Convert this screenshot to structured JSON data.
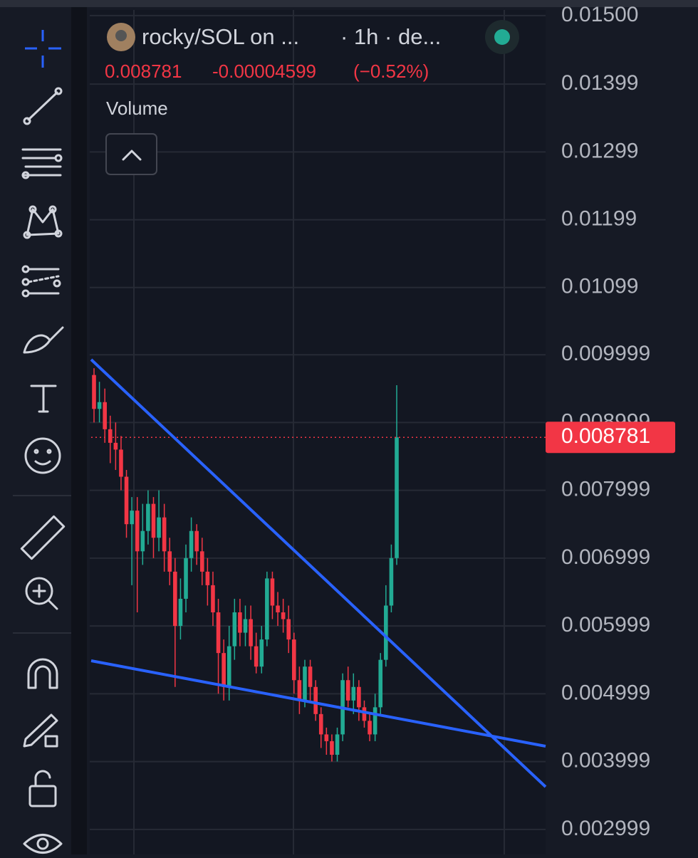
{
  "header": {
    "symbol": "rocky/SOL on ...",
    "interval": "· 1h · de...",
    "price": "0.008781",
    "change": "-0.00004599",
    "change_pct": "(−0.52%)",
    "indicator": "Volume"
  },
  "chart_data": {
    "type": "candlestick",
    "up_color": "#22ab94",
    "down_color": "#f23645",
    "open": [
      0.0097,
      0.0092,
      0.0093,
      0.0089,
      0.0087,
      0.0086,
      0.0082,
      0.0075,
      0.0077,
      0.0071,
      0.0074,
      0.0078,
      0.0073,
      0.0076,
      0.0071,
      0.0068,
      0.006,
      0.0064,
      0.007,
      0.0074,
      0.0071,
      0.0068,
      0.0066,
      0.0062,
      0.0056,
      0.0051,
      0.0057,
      0.0062,
      0.0059,
      0.0061,
      0.0057,
      0.0054,
      0.0058,
      0.0067,
      0.0063,
      0.0062,
      0.0061,
      0.0058,
      0.0052,
      0.0049,
      0.0054,
      0.0051,
      0.0047,
      0.0044,
      0.0043,
      0.0041,
      0.0044,
      0.0052,
      0.0049,
      0.0051,
      0.0048,
      0.0046,
      0.0044,
      0.0048,
      0.0055,
      0.0063,
      0.007
    ],
    "high": [
      0.0098,
      0.0096,
      0.0095,
      0.0091,
      0.009,
      0.0088,
      0.0083,
      0.0079,
      0.0079,
      0.0078,
      0.008,
      0.0079,
      0.008,
      0.0078,
      0.0073,
      0.007,
      0.0067,
      0.0072,
      0.0076,
      0.0075,
      0.0073,
      0.007,
      0.0068,
      0.0064,
      0.0058,
      0.006,
      0.0064,
      0.0064,
      0.0063,
      0.0063,
      0.0059,
      0.006,
      0.0068,
      0.0068,
      0.0065,
      0.0064,
      0.0063,
      0.0059,
      0.0054,
      0.0055,
      0.0055,
      0.0052,
      0.0048,
      0.0045,
      0.0044,
      0.0045,
      0.0053,
      0.0054,
      0.0053,
      0.0052,
      0.0049,
      0.0047,
      0.005,
      0.0056,
      0.0066,
      0.0072,
      0.00955
    ],
    "low": [
      0.009,
      0.009,
      0.0087,
      0.0084,
      0.0083,
      0.008,
      0.0073,
      0.0066,
      0.0062,
      0.0069,
      0.0072,
      0.007,
      0.0071,
      0.0068,
      0.0066,
      0.0051,
      0.0058,
      0.0062,
      0.0068,
      0.0069,
      0.0066,
      0.0063,
      0.006,
      0.005,
      0.0049,
      0.0049,
      0.0055,
      0.0057,
      0.0057,
      0.0055,
      0.0053,
      0.0053,
      0.0057,
      0.0061,
      0.006,
      0.0059,
      0.0056,
      0.005,
      0.0047,
      0.0048,
      0.0049,
      0.0046,
      0.0042,
      0.0041,
      0.004,
      0.004,
      0.0043,
      0.0048,
      0.0047,
      0.0046,
      0.0045,
      0.0043,
      0.0043,
      0.0047,
      0.0054,
      0.0062,
      0.0069
    ],
    "close": [
      0.0092,
      0.0093,
      0.0089,
      0.0087,
      0.0086,
      0.0082,
      0.0075,
      0.0077,
      0.0071,
      0.0074,
      0.0078,
      0.0073,
      0.0076,
      0.0071,
      0.0068,
      0.006,
      0.0064,
      0.007,
      0.0074,
      0.0071,
      0.0068,
      0.0066,
      0.0062,
      0.0056,
      0.0051,
      0.0057,
      0.0062,
      0.0059,
      0.0061,
      0.0057,
      0.0054,
      0.0058,
      0.0067,
      0.0063,
      0.0062,
      0.0061,
      0.0058,
      0.0052,
      0.0049,
      0.0054,
      0.0051,
      0.0047,
      0.0044,
      0.0043,
      0.0041,
      0.0044,
      0.0052,
      0.0049,
      0.0051,
      0.0048,
      0.0046,
      0.0044,
      0.0048,
      0.0055,
      0.0063,
      0.007,
      0.008781
    ],
    "last_price": 0.008781,
    "ylim": [
      0.00263,
      0.01523
    ],
    "yticks": [
      {
        "value": 0.015,
        "label": "0.01500"
      },
      0.01399,
      0.01299,
      0.01199,
      0.01099,
      0.009999,
      0.008999,
      0.007999,
      0.006999,
      0.005999,
      0.004999,
      0.003999,
      0.002999
    ],
    "grid": true
  }
}
